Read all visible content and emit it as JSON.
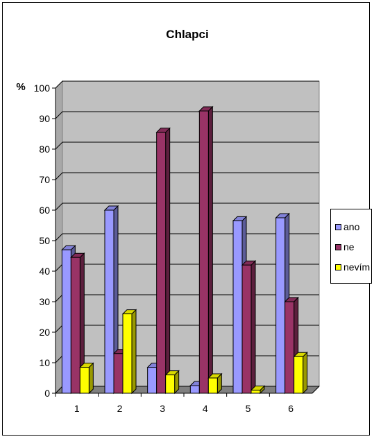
{
  "chart_data": {
    "type": "bar",
    "title": "Chlapci",
    "ylabel": "%",
    "xlabel": "",
    "categories": [
      "1",
      "2",
      "3",
      "4",
      "5",
      "6"
    ],
    "ylim": [
      0,
      100
    ],
    "yticks": [
      "0",
      "10",
      "20",
      "30",
      "40",
      "50",
      "60",
      "70",
      "80",
      "90",
      "100"
    ],
    "grid": true,
    "legend_position": "right",
    "three_d": true,
    "series": [
      {
        "name": "ano",
        "color": "#9999ff",
        "values": [
          47,
          60,
          8.5,
          2.5,
          56.5,
          57.5
        ]
      },
      {
        "name": "ne",
        "color": "#993366",
        "values": [
          44.5,
          13,
          85.5,
          92.5,
          42,
          30
        ]
      },
      {
        "name": "nevím",
        "color": "#ffff00",
        "values": [
          8.5,
          26,
          6,
          5,
          1,
          12
        ]
      }
    ]
  }
}
